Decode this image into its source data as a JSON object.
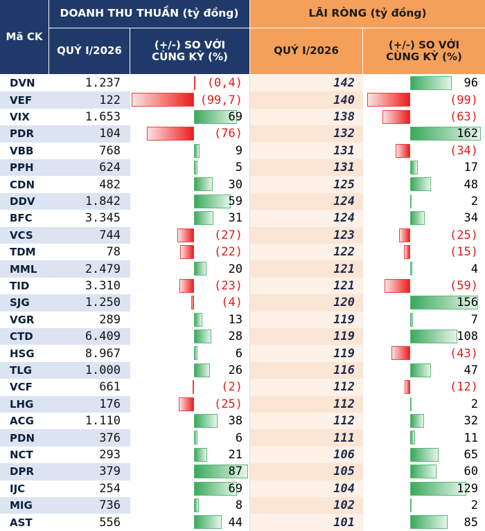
{
  "header": {
    "code_label": "Mã CK",
    "revenue_group": "DOANH THU THUẦN (tỷ đồng)",
    "profit_group": "LÃI RÒNG (tỷ đồng)",
    "quarter_label": "QUÝ I/2026",
    "change_label": "(+/-) SO VỚI CÙNG KỲ (%)"
  },
  "colors": {
    "header_navy": "#1f3a68",
    "header_orange": "#f5a05a",
    "row_band_blue": "#dce4f2",
    "row_band_peach": "#fbe6d6",
    "positive_bar": "#3aa95c",
    "negative_bar": "#ee1c1c",
    "negative_text": "#e01b1b"
  },
  "chart_data": {
    "type": "table",
    "columns": [
      "Mã CK",
      "Doanh thu thuần Quý I/2026",
      "Doanh thu (+/-) so với cùng kỳ (%)",
      "Lãi ròng Quý I/2026",
      "Lãi ròng (+/-) so với cùng kỳ (%)"
    ],
    "rows": [
      {
        "code": "DVN",
        "rev": "1.237",
        "rev_chg": -0.4,
        "rev_chg_label": "(0,4)",
        "np": "142",
        "np_chg": 96,
        "np_chg_label": "96"
      },
      {
        "code": "VEF",
        "rev": "122",
        "rev_chg": -99.7,
        "rev_chg_label": "(99,7)",
        "np": "140",
        "np_chg": -99,
        "np_chg_label": "(99)"
      },
      {
        "code": "VIX",
        "rev": "1.653",
        "rev_chg": 69,
        "rev_chg_label": "69",
        "np": "138",
        "np_chg": -63,
        "np_chg_label": "(63)"
      },
      {
        "code": "PDR",
        "rev": "104",
        "rev_chg": -76,
        "rev_chg_label": "(76)",
        "np": "132",
        "np_chg": 162,
        "np_chg_label": "162"
      },
      {
        "code": "VBB",
        "rev": "768",
        "rev_chg": 9,
        "rev_chg_label": "9",
        "np": "131",
        "np_chg": -34,
        "np_chg_label": "(34)"
      },
      {
        "code": "PPH",
        "rev": "624",
        "rev_chg": 5,
        "rev_chg_label": "5",
        "np": "131",
        "np_chg": 17,
        "np_chg_label": "17"
      },
      {
        "code": "CDN",
        "rev": "482",
        "rev_chg": 30,
        "rev_chg_label": "30",
        "np": "125",
        "np_chg": 48,
        "np_chg_label": "48"
      },
      {
        "code": "DDV",
        "rev": "1.842",
        "rev_chg": 59,
        "rev_chg_label": "59",
        "np": "124",
        "np_chg": 2,
        "np_chg_label": "2"
      },
      {
        "code": "BFC",
        "rev": "3.345",
        "rev_chg": 31,
        "rev_chg_label": "31",
        "np": "124",
        "np_chg": 34,
        "np_chg_label": "34"
      },
      {
        "code": "VCS",
        "rev": "744",
        "rev_chg": -27,
        "rev_chg_label": "(27)",
        "np": "123",
        "np_chg": -25,
        "np_chg_label": "(25)"
      },
      {
        "code": "TDM",
        "rev": "78",
        "rev_chg": -22,
        "rev_chg_label": "(22)",
        "np": "122",
        "np_chg": -15,
        "np_chg_label": "(15)"
      },
      {
        "code": "MML",
        "rev": "2.479",
        "rev_chg": 20,
        "rev_chg_label": "20",
        "np": "121",
        "np_chg": 4,
        "np_chg_label": "4"
      },
      {
        "code": "TID",
        "rev": "3.310",
        "rev_chg": -23,
        "rev_chg_label": "(23)",
        "np": "121",
        "np_chg": -59,
        "np_chg_label": "(59)"
      },
      {
        "code": "SJG",
        "rev": "1.250",
        "rev_chg": -4,
        "rev_chg_label": "(4)",
        "np": "120",
        "np_chg": 156,
        "np_chg_label": "156"
      },
      {
        "code": "VGR",
        "rev": "289",
        "rev_chg": 13,
        "rev_chg_label": "13",
        "np": "119",
        "np_chg": 7,
        "np_chg_label": "7"
      },
      {
        "code": "CTD",
        "rev": "6.409",
        "rev_chg": 28,
        "rev_chg_label": "28",
        "np": "119",
        "np_chg": 108,
        "np_chg_label": "108"
      },
      {
        "code": "HSG",
        "rev": "8.967",
        "rev_chg": 6,
        "rev_chg_label": "6",
        "np": "119",
        "np_chg": -43,
        "np_chg_label": "(43)"
      },
      {
        "code": "TLG",
        "rev": "1.000",
        "rev_chg": 26,
        "rev_chg_label": "26",
        "np": "116",
        "np_chg": 47,
        "np_chg_label": "47"
      },
      {
        "code": "VCF",
        "rev": "661",
        "rev_chg": -2,
        "rev_chg_label": "(2)",
        "np": "112",
        "np_chg": -12,
        "np_chg_label": "(12)"
      },
      {
        "code": "LHG",
        "rev": "176",
        "rev_chg": -25,
        "rev_chg_label": "(25)",
        "np": "112",
        "np_chg": 2,
        "np_chg_label": "2"
      },
      {
        "code": "ACG",
        "rev": "1.110",
        "rev_chg": 38,
        "rev_chg_label": "38",
        "np": "112",
        "np_chg": 32,
        "np_chg_label": "32"
      },
      {
        "code": "PDN",
        "rev": "376",
        "rev_chg": 6,
        "rev_chg_label": "6",
        "np": "111",
        "np_chg": 11,
        "np_chg_label": "11"
      },
      {
        "code": "NCT",
        "rev": "293",
        "rev_chg": 21,
        "rev_chg_label": "21",
        "np": "106",
        "np_chg": 65,
        "np_chg_label": "65"
      },
      {
        "code": "DPR",
        "rev": "379",
        "rev_chg": 87,
        "rev_chg_label": "87",
        "np": "105",
        "np_chg": 60,
        "np_chg_label": "60"
      },
      {
        "code": "IJC",
        "rev": "254",
        "rev_chg": 69,
        "rev_chg_label": "69",
        "np": "104",
        "np_chg": 129,
        "np_chg_label": "129"
      },
      {
        "code": "MIG",
        "rev": "736",
        "rev_chg": 8,
        "rev_chg_label": "8",
        "np": "102",
        "np_chg": 2,
        "np_chg_label": "2"
      },
      {
        "code": "AST",
        "rev": "556",
        "rev_chg": 44,
        "rev_chg_label": "44",
        "np": "101",
        "np_chg": 85,
        "np_chg_label": "85"
      }
    ]
  }
}
